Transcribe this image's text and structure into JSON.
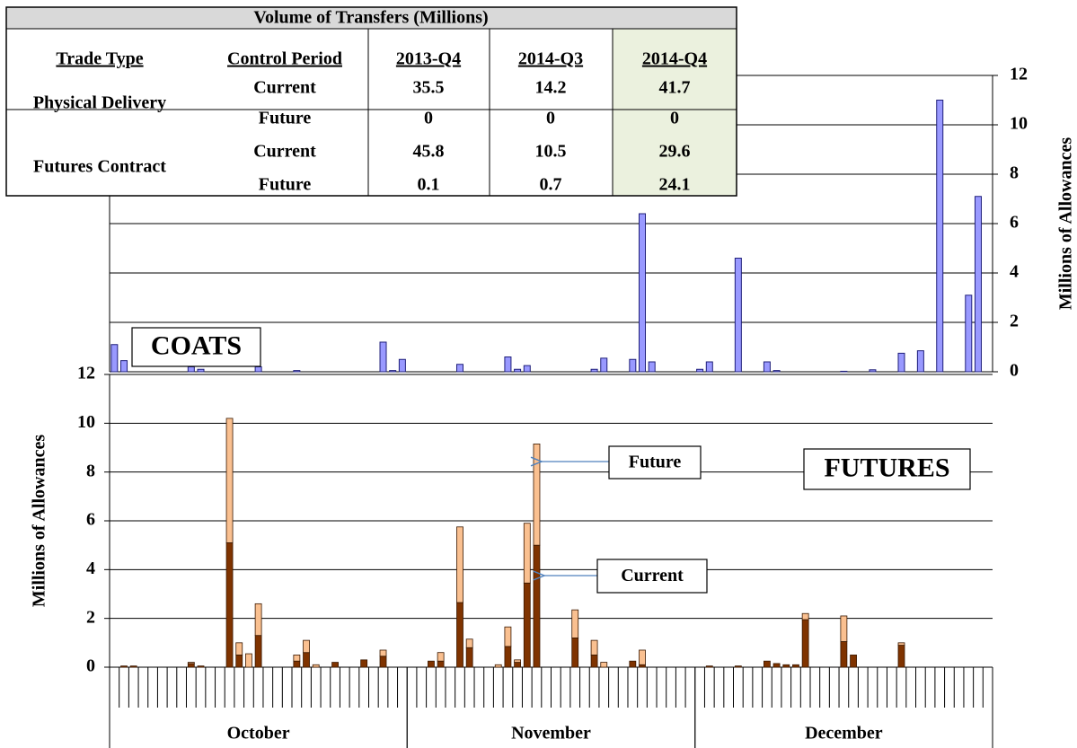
{
  "table": {
    "title": "Volume of Transfers (Millions)",
    "columns": [
      "Trade Type",
      "Control Period",
      "2013-Q4",
      "2014-Q3",
      "2014-Q4"
    ],
    "groups": [
      {
        "trade_type": "Physical Delivery",
        "rows": [
          {
            "period": "Current",
            "values": [
              35.5,
              14.2,
              41.7
            ]
          },
          {
            "period": "Future",
            "values": [
              0,
              0,
              0
            ]
          }
        ]
      },
      {
        "trade_type": "Futures Contract",
        "rows": [
          {
            "period": "Current",
            "values": [
              45.8,
              10.5,
              29.6
            ]
          },
          {
            "period": "Future",
            "values": [
              0.1,
              0.7,
              24.1
            ]
          }
        ]
      }
    ]
  },
  "chart_data": [
    {
      "type": "bar",
      "annotation": "COATS",
      "y_label": "Millions of Allowances",
      "color": "#9999ff",
      "ylim": [
        0,
        12
      ],
      "yticks": [
        0,
        2,
        4,
        6,
        8,
        10,
        12
      ],
      "grid": true,
      "values": [
        1.1,
        0.45,
        null,
        null,
        null,
        null,
        null,
        null,
        0.2,
        0.1,
        null,
        null,
        null,
        null,
        null,
        0.2,
        null,
        null,
        null,
        0.05,
        null,
        null,
        null,
        null,
        null,
        null,
        null,
        null,
        1.2,
        0.05,
        0.5,
        null,
        null,
        null,
        null,
        null,
        0.3,
        null,
        null,
        null,
        null,
        0.6,
        0.1,
        0.25,
        null,
        null,
        null,
        null,
        null,
        null,
        0.1,
        0.55,
        null,
        null,
        0.5,
        6.4,
        0.4,
        null,
        null,
        null,
        null,
        0.1,
        0.4,
        null,
        null,
        4.6,
        null,
        null,
        0.4,
        0.05,
        null,
        null,
        null,
        null,
        null,
        null,
        0.02,
        null,
        null,
        0.08,
        null,
        null,
        0.75,
        null,
        0.85,
        null,
        11,
        null,
        null,
        3.1,
        7.1,
        null
      ]
    },
    {
      "type": "stacked_bar",
      "annotation": "FUTURES",
      "y_label": "Millions of Allowances",
      "ylim": [
        0,
        12
      ],
      "yticks": [
        0,
        2,
        4,
        6,
        8,
        10,
        12
      ],
      "grid": true,
      "months": [
        "October",
        "November",
        "December"
      ],
      "month_days": [
        31,
        30,
        31
      ],
      "series": [
        {
          "name": "Current",
          "color": "#7f3300",
          "values": [
            null,
            0.05,
            0.05,
            null,
            null,
            null,
            null,
            null,
            0.15,
            0.05,
            null,
            null,
            5.1,
            0.5,
            0,
            1.3,
            null,
            null,
            null,
            0.25,
            0.6,
            0,
            null,
            0.2,
            null,
            null,
            0.3,
            null,
            0.45,
            null,
            null,
            null,
            null,
            0.25,
            0.25,
            null,
            2.65,
            0.8,
            null,
            null,
            0,
            0.85,
            0.2,
            3.45,
            5.0,
            null,
            null,
            null,
            1.2,
            null,
            0.5,
            0,
            null,
            null,
            0.25,
            0.1,
            null,
            null,
            null,
            null,
            null,
            null,
            0.05,
            null,
            null,
            0.05,
            null,
            null,
            0.25,
            0.15,
            0.1,
            0.1,
            1.95,
            null,
            null,
            null,
            1.05,
            0.5,
            null,
            null,
            null,
            null,
            0.9,
            null,
            null,
            null,
            null,
            null,
            null,
            null,
            null,
            null
          ]
        },
        {
          "name": "Future",
          "color": "#fac090",
          "values": [
            null,
            null,
            null,
            null,
            null,
            null,
            null,
            null,
            0.05,
            null,
            null,
            null,
            5.1,
            0.5,
            0.55,
            1.3,
            null,
            null,
            null,
            0.25,
            0.5,
            0.1,
            null,
            null,
            null,
            null,
            null,
            null,
            0.25,
            null,
            null,
            null,
            null,
            null,
            0.35,
            null,
            3.1,
            0.35,
            null,
            null,
            0.1,
            0.8,
            0.1,
            2.45,
            4.15,
            null,
            null,
            null,
            1.15,
            null,
            0.6,
            0.2,
            null,
            null,
            null,
            0.6,
            null,
            null,
            null,
            null,
            null,
            null,
            null,
            null,
            null,
            null,
            null,
            null,
            null,
            null,
            null,
            null,
            0.25,
            null,
            null,
            null,
            1.05,
            null,
            null,
            null,
            null,
            null,
            0.1,
            null,
            null,
            null,
            null,
            null,
            null,
            null,
            null,
            null
          ]
        }
      ]
    }
  ]
}
